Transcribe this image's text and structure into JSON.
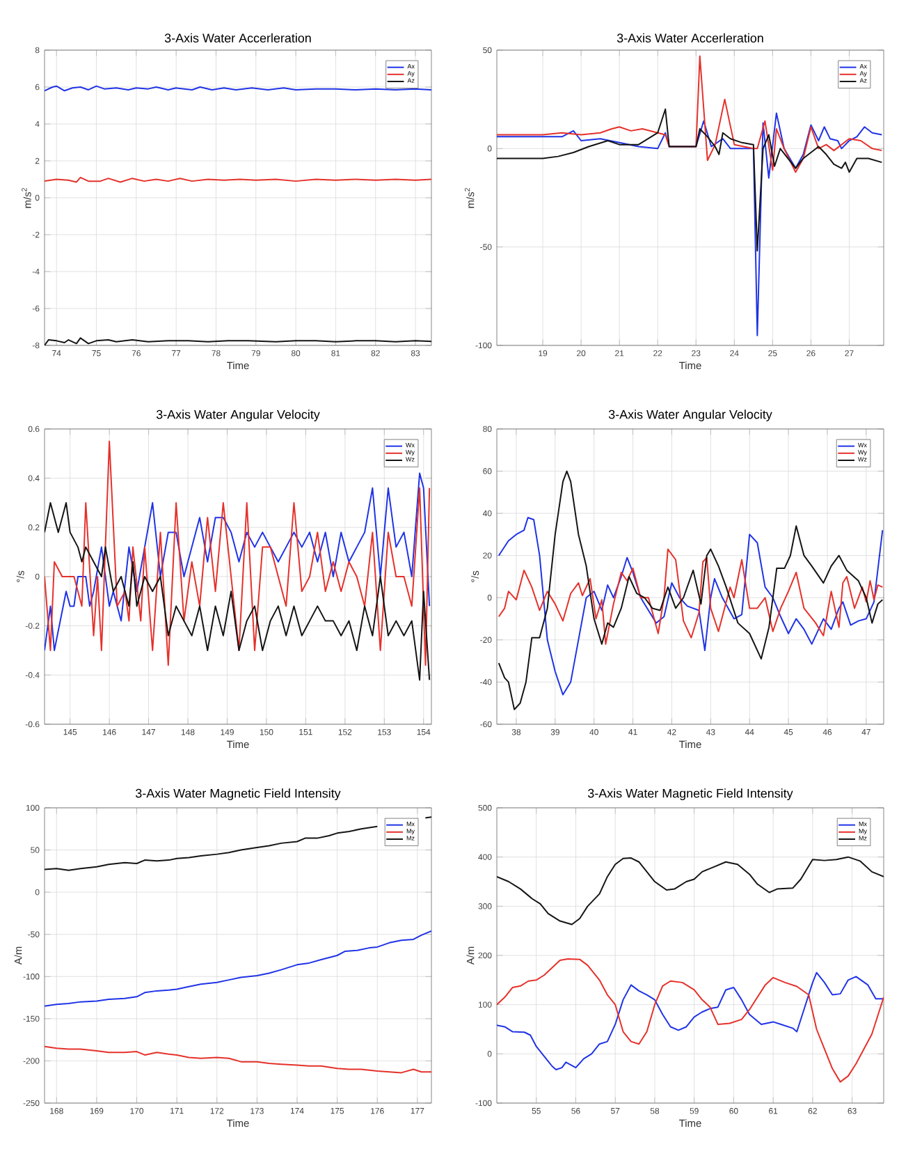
{
  "chart_data": [
    {
      "type": "line",
      "title": "3-Axis Water Accerleration",
      "xlabel": "Time",
      "ylabel": "m/s$^{2}$",
      "xlim": [
        73.7,
        83.4
      ],
      "ylim": [
        -8,
        8
      ],
      "xticks": [
        74,
        75,
        76,
        77,
        78,
        79,
        80,
        81,
        82,
        83
      ],
      "yticks": [
        -8,
        -6,
        -4,
        -2,
        0,
        2,
        4,
        6,
        8
      ],
      "grid": true,
      "legend": "top right",
      "series": [
        {
          "name": "Ax",
          "color": "#1f33e6",
          "x": [
            73.7,
            73.9,
            74,
            74.2,
            74.4,
            74.6,
            74.8,
            75,
            75.2,
            75.5,
            75.8,
            76,
            76.3,
            76.5,
            76.8,
            77,
            77.4,
            77.6,
            77.9,
            78.2,
            78.5,
            78.9,
            79.3,
            79.7,
            80,
            80.5,
            81,
            81.5,
            82,
            82.5,
            83,
            83.4
          ],
          "values": [
            5.8,
            6.0,
            6.05,
            5.8,
            5.95,
            6.0,
            5.85,
            6.05,
            5.9,
            5.95,
            5.85,
            5.95,
            5.9,
            6.0,
            5.85,
            5.95,
            5.85,
            6.0,
            5.85,
            5.95,
            5.85,
            5.95,
            5.85,
            5.95,
            5.85,
            5.9,
            5.9,
            5.85,
            5.9,
            5.85,
            5.9,
            5.85
          ]
        },
        {
          "name": "Ay",
          "color": "#e5312b",
          "x": [
            73.7,
            74,
            74.3,
            74.5,
            74.6,
            74.8,
            75.1,
            75.3,
            75.6,
            75.9,
            76.2,
            76.5,
            76.8,
            77.1,
            77.4,
            77.8,
            78.2,
            78.6,
            79,
            79.5,
            80,
            80.5,
            81,
            81.5,
            82,
            82.5,
            83,
            83.4
          ],
          "values": [
            0.9,
            1.0,
            0.95,
            0.85,
            1.1,
            0.9,
            0.9,
            1.05,
            0.85,
            1.05,
            0.9,
            1.0,
            0.9,
            1.05,
            0.9,
            1.0,
            0.95,
            1.0,
            0.95,
            1.0,
            0.9,
            1.0,
            0.95,
            1.0,
            0.95,
            1.0,
            0.95,
            1.0
          ]
        },
        {
          "name": "Az",
          "color": "#141414",
          "x": [
            73.7,
            73.8,
            74,
            74.2,
            74.3,
            74.5,
            74.6,
            74.8,
            75,
            75.3,
            75.5,
            75.9,
            76.3,
            76.8,
            77.3,
            77.8,
            78.3,
            78.8,
            79.5,
            80,
            80.5,
            81,
            81.5,
            82,
            82.5,
            83,
            83.4
          ],
          "values": [
            -8.0,
            -7.7,
            -7.75,
            -7.85,
            -7.7,
            -7.9,
            -7.6,
            -7.9,
            -7.75,
            -7.7,
            -7.8,
            -7.7,
            -7.8,
            -7.75,
            -7.75,
            -7.8,
            -7.75,
            -7.75,
            -7.8,
            -7.75,
            -7.75,
            -7.8,
            -7.75,
            -7.75,
            -7.8,
            -7.75,
            -7.78
          ]
        }
      ]
    },
    {
      "type": "line",
      "title": "3-Axis Water Accerleration",
      "xlabel": "Time",
      "ylabel": "m/s$^{2}$",
      "xlim": [
        17.8,
        27.9
      ],
      "ylim": [
        -100,
        50
      ],
      "xticks": [
        19,
        20,
        21,
        22,
        23,
        24,
        25,
        26,
        27
      ],
      "yticks": [
        -100,
        -50,
        0,
        50
      ],
      "grid": true,
      "legend": "top right",
      "series": [
        {
          "name": "Ax",
          "color": "#1f33e6",
          "x": [
            17.8,
            19,
            19.5,
            19.8,
            20,
            20.5,
            21,
            21.5,
            22,
            22.2,
            22.3,
            23,
            23.2,
            23.4,
            23.7,
            23.9,
            24.5,
            24.6,
            24.75,
            24.9,
            25.1,
            25.3,
            25.6,
            25.8,
            26,
            26.2,
            26.35,
            26.5,
            26.7,
            26.8,
            27,
            27.2,
            27.4,
            27.6,
            27.85
          ],
          "values": [
            6,
            6,
            6,
            9,
            4,
            5,
            3,
            1,
            0,
            8,
            1,
            1,
            14,
            1,
            5,
            0,
            0,
            -95,
            13,
            -15,
            18,
            0,
            -10,
            -3,
            12,
            4,
            11,
            5,
            4,
            0,
            4,
            6,
            11,
            8,
            7
          ]
        },
        {
          "name": "Ay",
          "color": "#e5312b",
          "x": [
            17.8,
            19,
            19.5,
            20,
            20.5,
            20.8,
            21,
            21.3,
            21.6,
            22,
            22.2,
            22.3,
            23,
            23.1,
            23.3,
            23.5,
            23.75,
            24,
            24.5,
            24.6,
            24.8,
            25,
            25.1,
            25.3,
            25.6,
            25.8,
            26,
            26.2,
            26.4,
            26.6,
            27,
            27.3,
            27.6,
            27.85
          ],
          "values": [
            7,
            7,
            8,
            7,
            8,
            10,
            11,
            9,
            10,
            8,
            7,
            1,
            1,
            47,
            -6,
            2,
            25,
            2,
            0,
            0,
            14,
            -11,
            10,
            0,
            -12,
            -5,
            11,
            0,
            2,
            -1,
            5,
            4,
            0,
            -1
          ]
        },
        {
          "name": "Az",
          "color": "#141414",
          "x": [
            17.8,
            19,
            19.4,
            19.8,
            20.2,
            20.7,
            21,
            21.5,
            22,
            22.2,
            22.3,
            23,
            23.1,
            23.3,
            23.5,
            23.6,
            23.7,
            23.9,
            24.2,
            24.5,
            24.6,
            24.75,
            24.9,
            25.05,
            25.2,
            25.6,
            25.8,
            26,
            26.2,
            26.4,
            26.6,
            26.8,
            26.9,
            27,
            27.2,
            27.5,
            27.85
          ],
          "values": [
            -5,
            -5,
            -4,
            -2,
            1,
            4,
            2,
            2,
            8,
            20,
            1,
            1,
            10,
            6,
            1,
            -3,
            8,
            5,
            3,
            2,
            -52,
            0,
            7,
            -9,
            0,
            -10,
            -5,
            -2,
            1,
            -3,
            -8,
            -10,
            -7,
            -12,
            -5,
            -5,
            -7
          ]
        }
      ]
    },
    {
      "type": "line",
      "title": "3-Axis Water Angular Velocity",
      "xlabel": "Time",
      "ylabel": "°/s",
      "xlim": [
        144.35,
        154.2
      ],
      "ylim": [
        -0.6,
        0.6
      ],
      "xticks": [
        145,
        146,
        147,
        148,
        149,
        150,
        151,
        152,
        153,
        154
      ],
      "yticks": [
        -0.6,
        -0.4,
        -0.2,
        0,
        0.2,
        0.4,
        0.6
      ],
      "grid": true,
      "legend": "top right",
      "series": [
        {
          "name": "Wx",
          "color": "#1f33e6",
          "x": [
            144.35,
            144.5,
            144.6,
            144.9,
            145,
            145.1,
            145.2,
            145.4,
            145.5,
            145.6,
            145.8,
            146,
            146.1,
            146.3,
            146.5,
            146.7,
            146.9,
            147.1,
            147.3,
            147.5,
            147.7,
            147.9,
            148.1,
            148.3,
            148.5,
            148.7,
            148.9,
            149.1,
            149.3,
            149.5,
            149.7,
            149.9,
            150.1,
            150.3,
            150.5,
            150.7,
            150.9,
            151.1,
            151.3,
            151.5,
            151.7,
            151.9,
            152.1,
            152.3,
            152.5,
            152.7,
            152.9,
            153.1,
            153.3,
            153.5,
            153.7,
            153.9,
            154.0,
            154.15
          ],
          "values": [
            -0.3,
            -0.12,
            -0.3,
            -0.06,
            -0.12,
            -0.12,
            0,
            0,
            -0.12,
            -0.06,
            0.12,
            -0.12,
            -0.06,
            -0.18,
            0.12,
            -0.06,
            0.12,
            0.3,
            0,
            0.18,
            0.18,
            0,
            0.12,
            0.24,
            0.06,
            0.24,
            0.24,
            0.18,
            0.06,
            0.18,
            0.12,
            0.18,
            0.12,
            0.06,
            0.12,
            0.18,
            0.12,
            0.18,
            0.06,
            0.18,
            0,
            0.18,
            0.06,
            0.12,
            0.18,
            0.36,
            0,
            0.36,
            0.12,
            0.18,
            0,
            0.42,
            0.36,
            -0.12
          ]
        },
        {
          "name": "Wy",
          "color": "#e5312b",
          "x": [
            144.35,
            144.5,
            144.6,
            144.8,
            145.1,
            145.3,
            145.4,
            145.6,
            145.7,
            145.8,
            146.0,
            146.2,
            146.4,
            146.5,
            146.6,
            146.8,
            146.9,
            147.1,
            147.3,
            147.5,
            147.7,
            147.9,
            148.1,
            148.3,
            148.5,
            148.7,
            148.9,
            149.1,
            149.3,
            149.5,
            149.7,
            149.9,
            150.1,
            150.3,
            150.5,
            150.7,
            150.9,
            151.1,
            151.3,
            151.5,
            151.7,
            151.9,
            152.1,
            152.3,
            152.5,
            152.7,
            152.9,
            153.1,
            153.3,
            153.5,
            153.7,
            153.9,
            154.05,
            154.15
          ],
          "values": [
            0,
            -0.3,
            0.06,
            0,
            0,
            -0.12,
            0.3,
            -0.24,
            0,
            -0.3,
            0.55,
            -0.12,
            -0.06,
            -0.18,
            0.12,
            -0.18,
            0.12,
            -0.3,
            0.18,
            -0.36,
            0.3,
            -0.18,
            0.06,
            -0.12,
            0.24,
            -0.06,
            0.3,
            0,
            -0.3,
            0.3,
            -0.3,
            0.12,
            0.12,
            0,
            -0.12,
            0.3,
            -0.06,
            0,
            0.18,
            -0.06,
            0.06,
            -0.06,
            0.06,
            0,
            -0.12,
            0.18,
            -0.3,
            0.18,
            0,
            0,
            -0.12,
            0.36,
            -0.36,
            0.36
          ]
        },
        {
          "name": "Wz",
          "color": "#141414",
          "x": [
            144.35,
            144.5,
            144.7,
            144.9,
            145,
            145.2,
            145.3,
            145.4,
            145.6,
            145.8,
            145.9,
            146.1,
            146.3,
            146.5,
            146.6,
            146.7,
            146.9,
            147.1,
            147.3,
            147.5,
            147.7,
            147.9,
            148.1,
            148.3,
            148.5,
            148.7,
            148.9,
            149.1,
            149.3,
            149.5,
            149.7,
            149.9,
            150.1,
            150.3,
            150.5,
            150.7,
            150.9,
            151.1,
            151.3,
            151.5,
            151.7,
            151.9,
            152.1,
            152.3,
            152.5,
            152.7,
            152.9,
            153.1,
            153.3,
            153.5,
            153.7,
            153.9,
            154.0,
            154.15
          ],
          "values": [
            0.18,
            0.3,
            0.18,
            0.3,
            0.18,
            0.12,
            0.06,
            0.12,
            0.06,
            0,
            0.12,
            -0.06,
            0,
            -0.12,
            0.06,
            -0.12,
            0,
            -0.06,
            0,
            -0.24,
            -0.12,
            -0.18,
            -0.24,
            -0.12,
            -0.3,
            -0.12,
            -0.24,
            -0.06,
            -0.3,
            -0.18,
            -0.12,
            -0.3,
            -0.18,
            -0.12,
            -0.24,
            -0.12,
            -0.24,
            -0.18,
            -0.12,
            -0.18,
            -0.18,
            -0.24,
            -0.18,
            -0.3,
            -0.12,
            -0.24,
            0,
            -0.24,
            -0.18,
            -0.24,
            -0.18,
            -0.42,
            -0.06,
            -0.42
          ]
        }
      ]
    },
    {
      "type": "line",
      "title": "3-Axis Water Angular Velocity",
      "xlabel": "Time",
      "ylabel": "°/s",
      "xlim": [
        37.5,
        47.45
      ],
      "ylim": [
        -60,
        80
      ],
      "xticks": [
        38,
        39,
        40,
        41,
        42,
        43,
        44,
        45,
        46,
        47
      ],
      "yticks": [
        -60,
        -40,
        -20,
        0,
        20,
        40,
        60,
        80
      ],
      "grid": true,
      "legend": "top right",
      "series": [
        {
          "name": "Wx",
          "color": "#1f33e6",
          "x": [
            37.55,
            37.8,
            38,
            38.2,
            38.3,
            38.45,
            38.6,
            38.8,
            39,
            39.2,
            39.4,
            39.6,
            39.8,
            40,
            40.2,
            40.35,
            40.5,
            40.7,
            40.85,
            41,
            41.2,
            41.4,
            41.6,
            41.8,
            42,
            42.2,
            42.4,
            42.7,
            42.85,
            43,
            43.1,
            43.3,
            43.6,
            43.8,
            44,
            44.2,
            44.4,
            44.6,
            44.8,
            45,
            45.2,
            45.4,
            45.6,
            45.9,
            46.1,
            46.3,
            46.4,
            46.6,
            46.8,
            47,
            47.2,
            47.42
          ],
          "values": [
            20,
            27,
            30,
            32,
            38,
            37,
            20,
            -20,
            -35,
            -46,
            -40,
            -20,
            0,
            3,
            -6,
            6,
            0,
            10,
            19,
            12,
            0,
            -6,
            -12,
            -9,
            7,
            0,
            -4,
            -6,
            -25,
            0,
            9,
            0,
            -10,
            -8,
            30,
            26,
            5,
            0,
            -9,
            -17,
            -10,
            -15,
            -22,
            -10,
            -15,
            -5,
            -2,
            -13,
            -11,
            -10,
            -2,
            32
          ]
        },
        {
          "name": "Wy",
          "color": "#e5312b",
          "x": [
            37.55,
            37.7,
            37.8,
            38,
            38.2,
            38.4,
            38.6,
            38.8,
            39,
            39.2,
            39.4,
            39.6,
            39.7,
            39.9,
            40.05,
            40.2,
            40.3,
            40.5,
            40.7,
            40.85,
            41,
            41.2,
            41.4,
            41.65,
            41.8,
            41.9,
            42.1,
            42.3,
            42.5,
            42.7,
            42.8,
            42.9,
            43,
            43.2,
            43.5,
            43.6,
            43.8,
            44,
            44.2,
            44.4,
            44.6,
            44.8,
            45,
            45.2,
            45.4,
            45.7,
            45.9,
            46.1,
            46.3,
            46.4,
            46.5,
            46.7,
            46.9,
            47,
            47.1,
            47.2,
            47.3,
            47.42
          ],
          "values": [
            -9,
            -5,
            3,
            -1,
            13,
            5,
            -6,
            3,
            -3,
            -11,
            2,
            7,
            1,
            9,
            -10,
            -1,
            -22,
            -3,
            12,
            8,
            14,
            0,
            0,
            -17,
            0,
            23,
            18,
            -11,
            -19,
            -7,
            17,
            19,
            -5,
            -16,
            5,
            0,
            18,
            -5,
            -5,
            0,
            -16,
            -5,
            3,
            12,
            -5,
            -12,
            -18,
            3,
            -14,
            7,
            10,
            -5,
            5,
            -2,
            8,
            -1,
            6,
            5
          ]
        },
        {
          "name": "Wz",
          "color": "#141414",
          "x": [
            37.55,
            37.7,
            37.8,
            37.95,
            38.1,
            38.25,
            38.4,
            38.6,
            38.8,
            39,
            39.2,
            39.3,
            39.4,
            39.6,
            39.8,
            40,
            40.2,
            40.35,
            40.5,
            40.7,
            40.9,
            41.1,
            41.3,
            41.5,
            41.7,
            41.9,
            42.1,
            42.3,
            42.55,
            42.75,
            42.9,
            43,
            43.2,
            43.4,
            43.7,
            44,
            44.3,
            44.5,
            44.7,
            44.9,
            45.05,
            45.2,
            45.4,
            45.6,
            45.9,
            46.1,
            46.3,
            46.5,
            46.8,
            47,
            47.15,
            47.3,
            47.42
          ],
          "values": [
            -31,
            -38,
            -40,
            -53,
            -50,
            -40,
            -19,
            -19,
            -5,
            30,
            55,
            60,
            55,
            30,
            15,
            -10,
            -22,
            -12,
            -14,
            -5,
            10,
            2,
            0,
            -5,
            -6,
            5,
            -5,
            0,
            13,
            -3,
            20,
            23,
            15,
            5,
            -12,
            -17,
            -29,
            -14,
            14,
            14,
            20,
            34,
            20,
            15,
            7,
            15,
            20,
            13,
            8,
            0,
            -12,
            -3,
            -1
          ]
        }
      ]
    },
    {
      "type": "line",
      "title": "3-Axis Water Magnetic Field Intensity",
      "xlabel": "Time",
      "ylabel": "A/m",
      "xlim": [
        167.7,
        177.35
      ],
      "ylim": [
        -250,
        100
      ],
      "xticks": [
        168,
        169,
        170,
        171,
        172,
        173,
        174,
        175,
        176,
        177
      ],
      "yticks": [
        -250,
        -200,
        -150,
        -100,
        -50,
        0,
        50,
        100
      ],
      "grid": true,
      "legend": "top right",
      "series": [
        {
          "name": "Mx",
          "color": "#1f33e6",
          "x": [
            167.7,
            168,
            168.3,
            168.6,
            169,
            169.3,
            169.7,
            170,
            170.2,
            170.5,
            170.8,
            171,
            171.3,
            171.6,
            172,
            172.3,
            172.6,
            173,
            173.3,
            173.6,
            174,
            174.3,
            174.6,
            175,
            175.2,
            175.5,
            175.8,
            176,
            176.3,
            176.6,
            176.9,
            177.1,
            177.35
          ],
          "values": [
            -135,
            -133,
            -132,
            -130,
            -129,
            -127,
            -126,
            -124,
            -119,
            -117,
            -116,
            -115,
            -112,
            -109,
            -107,
            -104,
            -101,
            -99,
            -96,
            -92,
            -86,
            -84,
            -80,
            -75,
            -70,
            -69,
            -66,
            -65,
            -60,
            -57,
            -56,
            -51,
            -46
          ]
        },
        {
          "name": "My",
          "color": "#e5312b",
          "x": [
            167.7,
            168,
            168.3,
            168.6,
            169,
            169.3,
            169.7,
            170,
            170.2,
            170.5,
            170.8,
            171,
            171.3,
            171.6,
            172,
            172.3,
            172.6,
            173,
            173.3,
            173.6,
            174,
            174.3,
            174.6,
            175,
            175.3,
            175.6,
            176,
            176.3,
            176.6,
            176.9,
            177.1,
            177.35
          ],
          "values": [
            -183,
            -185,
            -186,
            -186,
            -188,
            -190,
            -190,
            -189,
            -193,
            -190,
            -192,
            -193,
            -196,
            -197,
            -196,
            -197,
            -201,
            -201,
            -203,
            -204,
            -205,
            -206,
            -206,
            -209,
            -210,
            -210,
            -212,
            -213,
            -214,
            -210,
            -213,
            -213
          ]
        },
        {
          "name": "Mz",
          "color": "#141414",
          "x": [
            167.7,
            168,
            168.3,
            168.6,
            169,
            169.3,
            169.7,
            170,
            170.2,
            170.5,
            170.8,
            171,
            171.3,
            171.6,
            172,
            172.3,
            172.6,
            173,
            173.3,
            173.6,
            174,
            174.2,
            174.5,
            174.8,
            175,
            175.3,
            175.6,
            176,
            176.3,
            176.6,
            177,
            177.2,
            177.35
          ],
          "values": [
            27,
            28,
            26,
            28,
            30,
            33,
            35,
            34,
            38,
            37,
            38,
            40,
            41,
            43,
            45,
            47,
            50,
            53,
            55,
            58,
            60,
            64,
            64,
            67,
            70,
            72,
            75,
            78,
            null,
            null,
            null,
            88,
            89
          ]
        }
      ]
    },
    {
      "type": "line",
      "title": "3-Axis Water Magnetic Field Intensity",
      "xlabel": "Time",
      "ylabel": "A/m",
      "xlim": [
        54,
        63.8
      ],
      "ylim": [
        -100,
        500
      ],
      "xticks": [
        55,
        56,
        57,
        58,
        59,
        60,
        61,
        62,
        63
      ],
      "yticks": [
        -100,
        0,
        100,
        200,
        300,
        400,
        500
      ],
      "grid": true,
      "legend": "top right",
      "series": [
        {
          "name": "Mx",
          "color": "#1f33e6",
          "x": [
            54,
            54.2,
            54.4,
            54.7,
            54.85,
            55,
            55.2,
            55.4,
            55.5,
            55.65,
            55.75,
            56,
            56.2,
            56.4,
            56.6,
            56.8,
            57,
            57.2,
            57.4,
            57.6,
            57.8,
            58,
            58.2,
            58.4,
            58.6,
            58.8,
            59,
            59.2,
            59.4,
            59.6,
            59.8,
            60,
            60.2,
            60.4,
            60.7,
            61,
            61.2,
            61.5,
            61.6,
            61.8,
            62,
            62.1,
            62.3,
            62.5,
            62.7,
            62.9,
            63.1,
            63.4,
            63.6,
            63.8
          ],
          "values": [
            58,
            55,
            45,
            44,
            38,
            15,
            -5,
            -25,
            -32,
            -28,
            -17,
            -28,
            -10,
            0,
            20,
            25,
            60,
            110,
            140,
            128,
            120,
            110,
            80,
            55,
            48,
            55,
            75,
            85,
            92,
            95,
            130,
            135,
            110,
            80,
            60,
            65,
            60,
            52,
            45,
            95,
            145,
            165,
            145,
            120,
            122,
            150,
            157,
            140,
            112,
            112
          ]
        },
        {
          "name": "My",
          "color": "#e5312b",
          "x": [
            54,
            54.2,
            54.4,
            54.6,
            54.8,
            55,
            55.2,
            55.4,
            55.6,
            55.8,
            56.1,
            56.3,
            56.6,
            56.8,
            57,
            57.2,
            57.4,
            57.6,
            57.8,
            58,
            58.2,
            58.4,
            58.7,
            59,
            59.2,
            59.4,
            59.6,
            59.9,
            60.2,
            60.4,
            60.6,
            60.8,
            61,
            61.3,
            61.6,
            61.9,
            62.1,
            62.3,
            62.5,
            62.7,
            62.9,
            63.1,
            63.3,
            63.5,
            63.8
          ],
          "values": [
            100,
            115,
            135,
            138,
            148,
            150,
            160,
            175,
            190,
            193,
            192,
            180,
            150,
            120,
            100,
            45,
            25,
            20,
            45,
            100,
            138,
            148,
            145,
            130,
            110,
            95,
            60,
            62,
            70,
            90,
            115,
            140,
            155,
            145,
            137,
            120,
            50,
            10,
            -30,
            -57,
            -45,
            -20,
            10,
            40,
            115
          ]
        },
        {
          "name": "Mz",
          "color": "#141414",
          "x": [
            54,
            54.3,
            54.6,
            54.9,
            55.1,
            55.3,
            55.6,
            55.9,
            56.1,
            56.3,
            56.6,
            56.8,
            57,
            57.2,
            57.4,
            57.6,
            57.8,
            58,
            58.3,
            58.5,
            58.8,
            59,
            59.2,
            59.5,
            59.8,
            60.1,
            60.4,
            60.6,
            60.9,
            61.1,
            61.5,
            61.7,
            62,
            62.3,
            62.6,
            62.9,
            63.2,
            63.5,
            63.8
          ],
          "values": [
            360,
            350,
            335,
            315,
            305,
            285,
            270,
            263,
            275,
            300,
            325,
            360,
            385,
            397,
            398,
            390,
            370,
            350,
            333,
            335,
            350,
            355,
            370,
            380,
            390,
            385,
            365,
            345,
            328,
            335,
            337,
            355,
            395,
            393,
            395,
            400,
            392,
            370,
            360
          ]
        }
      ]
    }
  ]
}
